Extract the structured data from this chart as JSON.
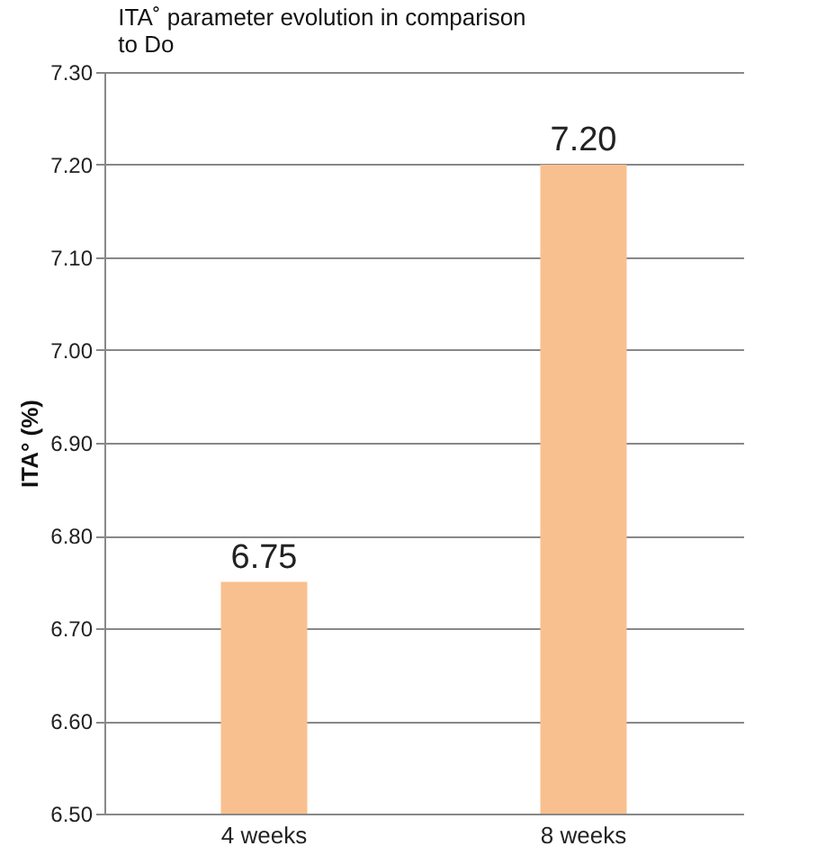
{
  "chart_data": {
    "type": "bar",
    "title": "ITA˚ parameter evolution in comparison to Do",
    "ylabel": "ITA° (%)",
    "categories": [
      "4 weeks",
      "8 weeks"
    ],
    "values": [
      6.75,
      7.2
    ],
    "color": "#f9c08f",
    "value_labels": [
      "6.75",
      "7.20"
    ],
    "ylim": [
      6.5,
      7.3
    ],
    "yticks": [
      {
        "value": 6.5,
        "label": "6.50"
      },
      {
        "value": 6.6,
        "label": "6.60"
      },
      {
        "value": 6.7,
        "label": "6.70"
      },
      {
        "value": 6.8,
        "label": "6.80"
      },
      {
        "value": 6.9,
        "label": "6.90"
      },
      {
        "value": 7.0,
        "label": "7.00"
      },
      {
        "value": 7.1,
        "label": "7.10"
      },
      {
        "value": 7.2,
        "label": "7.20"
      },
      {
        "value": 7.3,
        "label": "7.30"
      }
    ],
    "grid": "y"
  }
}
